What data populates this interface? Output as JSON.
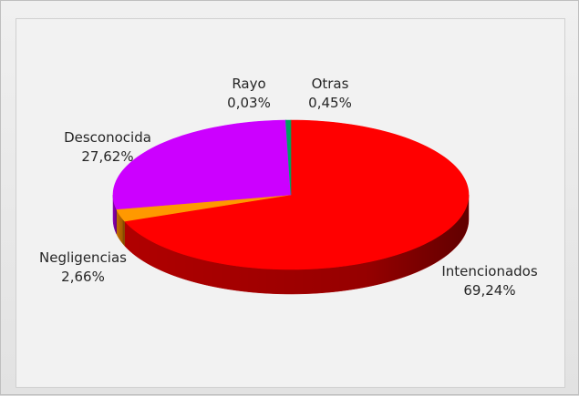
{
  "chart_data": {
    "type": "pie",
    "style": "3d",
    "slices": [
      {
        "label": "Intencionados",
        "value_label": "69,24%",
        "value": 69.24,
        "color": "#ff0000",
        "side": "#b00000"
      },
      {
        "label": "Negligencias",
        "value_label": "2,66%",
        "value": 2.66,
        "color": "#ff9900",
        "side": "#c26c00"
      },
      {
        "label": "Desconocida",
        "value_label": "27,62%",
        "value": 27.62,
        "color": "#cc00ff",
        "side": "#8a00b0"
      },
      {
        "label": "Rayo",
        "value_label": "0,03%",
        "value": 0.03,
        "color": "#4a7fd0",
        "side": "#2e5a9c"
      },
      {
        "label": "Otras",
        "value_label": "0,45%",
        "value": 0.45,
        "color": "#00a060",
        "side": "#006a3f"
      }
    ],
    "legend": "none"
  }
}
